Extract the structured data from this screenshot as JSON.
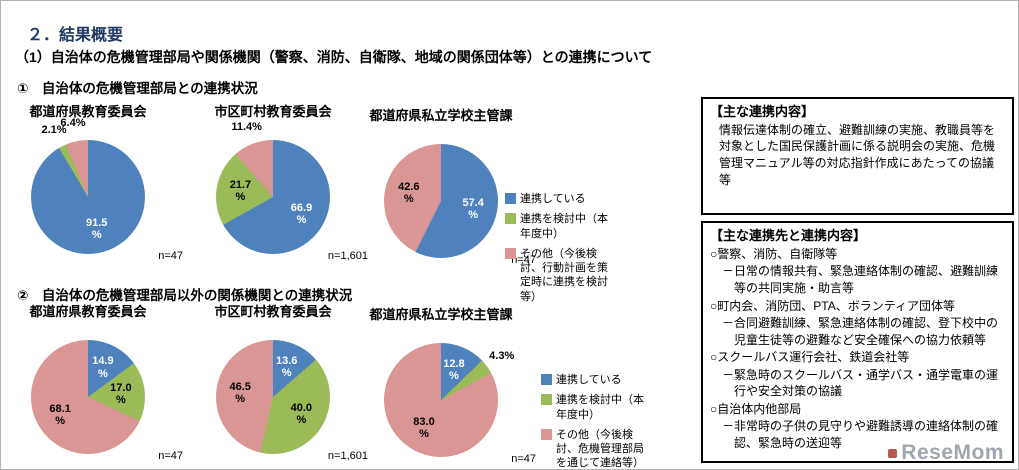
{
  "page": {
    "title": "２．結果概要",
    "subtitle": "（1）自治体の危機管理部局や関係機関（警察、消防、自衛隊、地域の関係団体等）との連携について"
  },
  "colors": {
    "blue": "#4f81bd",
    "green": "#9bbb59",
    "pink": "#d99694"
  },
  "sections": [
    {
      "heading": "①　自治体の危機管理部局との連携状況",
      "legend": [
        {
          "color": "blue",
          "label": "連携している"
        },
        {
          "color": "green",
          "label": "連携を検討中（本年度中）"
        },
        {
          "color": "pink",
          "label": "その他（今後検討、行動計画を策定時に連携を検討等）"
        }
      ]
    },
    {
      "heading": "②　自治体の危機管理部局以外の関係機関との連携状況",
      "legend": [
        {
          "color": "blue",
          "label": "連携している"
        },
        {
          "color": "green",
          "label": "連携を検討中（本年度中）"
        },
        {
          "color": "pink",
          "label": "その他（今後検討、危機管理部局を通じて連絡等）"
        }
      ]
    }
  ],
  "chart_data": [
    {
      "type": "pie",
      "title": "都道府県教育委員会",
      "n": "n=47",
      "slices": [
        {
          "name": "連携している",
          "color": "blue",
          "value": 91.5
        },
        {
          "name": "連携を検討中（本年度中）",
          "color": "green",
          "value": 2.1
        },
        {
          "name": "その他（今後検討、行動計画を策定時に連携を検討等）",
          "color": "pink",
          "value": 6.4
        }
      ]
    },
    {
      "type": "pie",
      "title": "市区町村教育委員会",
      "n": "n=1,601",
      "slices": [
        {
          "name": "連携している",
          "color": "blue",
          "value": 66.9
        },
        {
          "name": "連携を検討中（本年度中）",
          "color": "green",
          "value": 21.7
        },
        {
          "name": "その他（今後検討、行動計画を策定時に連携を検討等）",
          "color": "pink",
          "value": 11.4
        }
      ]
    },
    {
      "type": "pie",
      "title": "都道府県私立学校主管課",
      "n": "n=47",
      "slices": [
        {
          "name": "連携している",
          "color": "blue",
          "value": 57.4
        },
        {
          "name": "その他（今後検討、行動計画を策定時に連携を検討等）",
          "color": "pink",
          "value": 42.6
        }
      ]
    },
    {
      "type": "pie",
      "title": "都道府県教育委員会",
      "n": "n=47",
      "slices": [
        {
          "name": "連携している",
          "color": "blue",
          "value": 14.9
        },
        {
          "name": "連携を検討中（本年度中）",
          "color": "green",
          "value": 17.0
        },
        {
          "name": "その他（今後検討、危機管理部局を通じて連絡等）",
          "color": "pink",
          "value": 68.1
        }
      ]
    },
    {
      "type": "pie",
      "title": "市区町村教育委員会",
      "n": "n=1,601",
      "slices": [
        {
          "name": "連携している",
          "color": "blue",
          "value": 13.6
        },
        {
          "name": "連携を検討中（本年度中）",
          "color": "green",
          "value": 40.0
        },
        {
          "name": "その他（今後検討、危機管理部局を通じて連絡等）",
          "color": "pink",
          "value": 46.5
        }
      ]
    },
    {
      "type": "pie",
      "title": "都道府県私立学校主管課",
      "n": "n=47",
      "slices": [
        {
          "name": "連携している",
          "color": "blue",
          "value": 12.8
        },
        {
          "name": "連携を検討中（本年度中）",
          "color": "green",
          "value": 4.3
        },
        {
          "name": "その他（今後検討、危機管理部局を通じて連絡等）",
          "color": "pink",
          "value": 83.0
        }
      ]
    }
  ],
  "side_panel": {
    "box1": {
      "title": "【主な連携内容】",
      "body": "情報伝達体制の確立、避難訓練の実施、教職員等を対象とした国民保護計画に係る説明会の実施、危機管理マニュアル等の対応指針作成にあたっての協議等"
    },
    "box2": {
      "title": "【主な連携先と連携内容】",
      "items": [
        {
          "level": "main",
          "text": "○警察、消防、自衛隊等"
        },
        {
          "level": "sub",
          "text": "－日常の情報共有、緊急連絡体制の確認、避難訓練等の共同実施・助言等"
        },
        {
          "level": "main",
          "text": "○町内会、消防団、PTA、ボランティア団体等"
        },
        {
          "level": "sub",
          "text": "－合同避難訓練、緊急連絡体制の確認、登下校中の児童生徒等の避難など安全確保への協力依頼等"
        },
        {
          "level": "main",
          "text": "○スクールバス運行会社、鉄道会社等"
        },
        {
          "level": "sub",
          "text": "－緊急時のスクールバス・通学バス・通学電車の運行や安全対策の協議"
        },
        {
          "level": "main",
          "text": "○自治体内他部局"
        },
        {
          "level": "sub",
          "text": "－非常時の子供の見守りや避難誘導の連絡体制の確認、緊急時の送迎等"
        }
      ]
    }
  },
  "watermark": "ReseMom"
}
